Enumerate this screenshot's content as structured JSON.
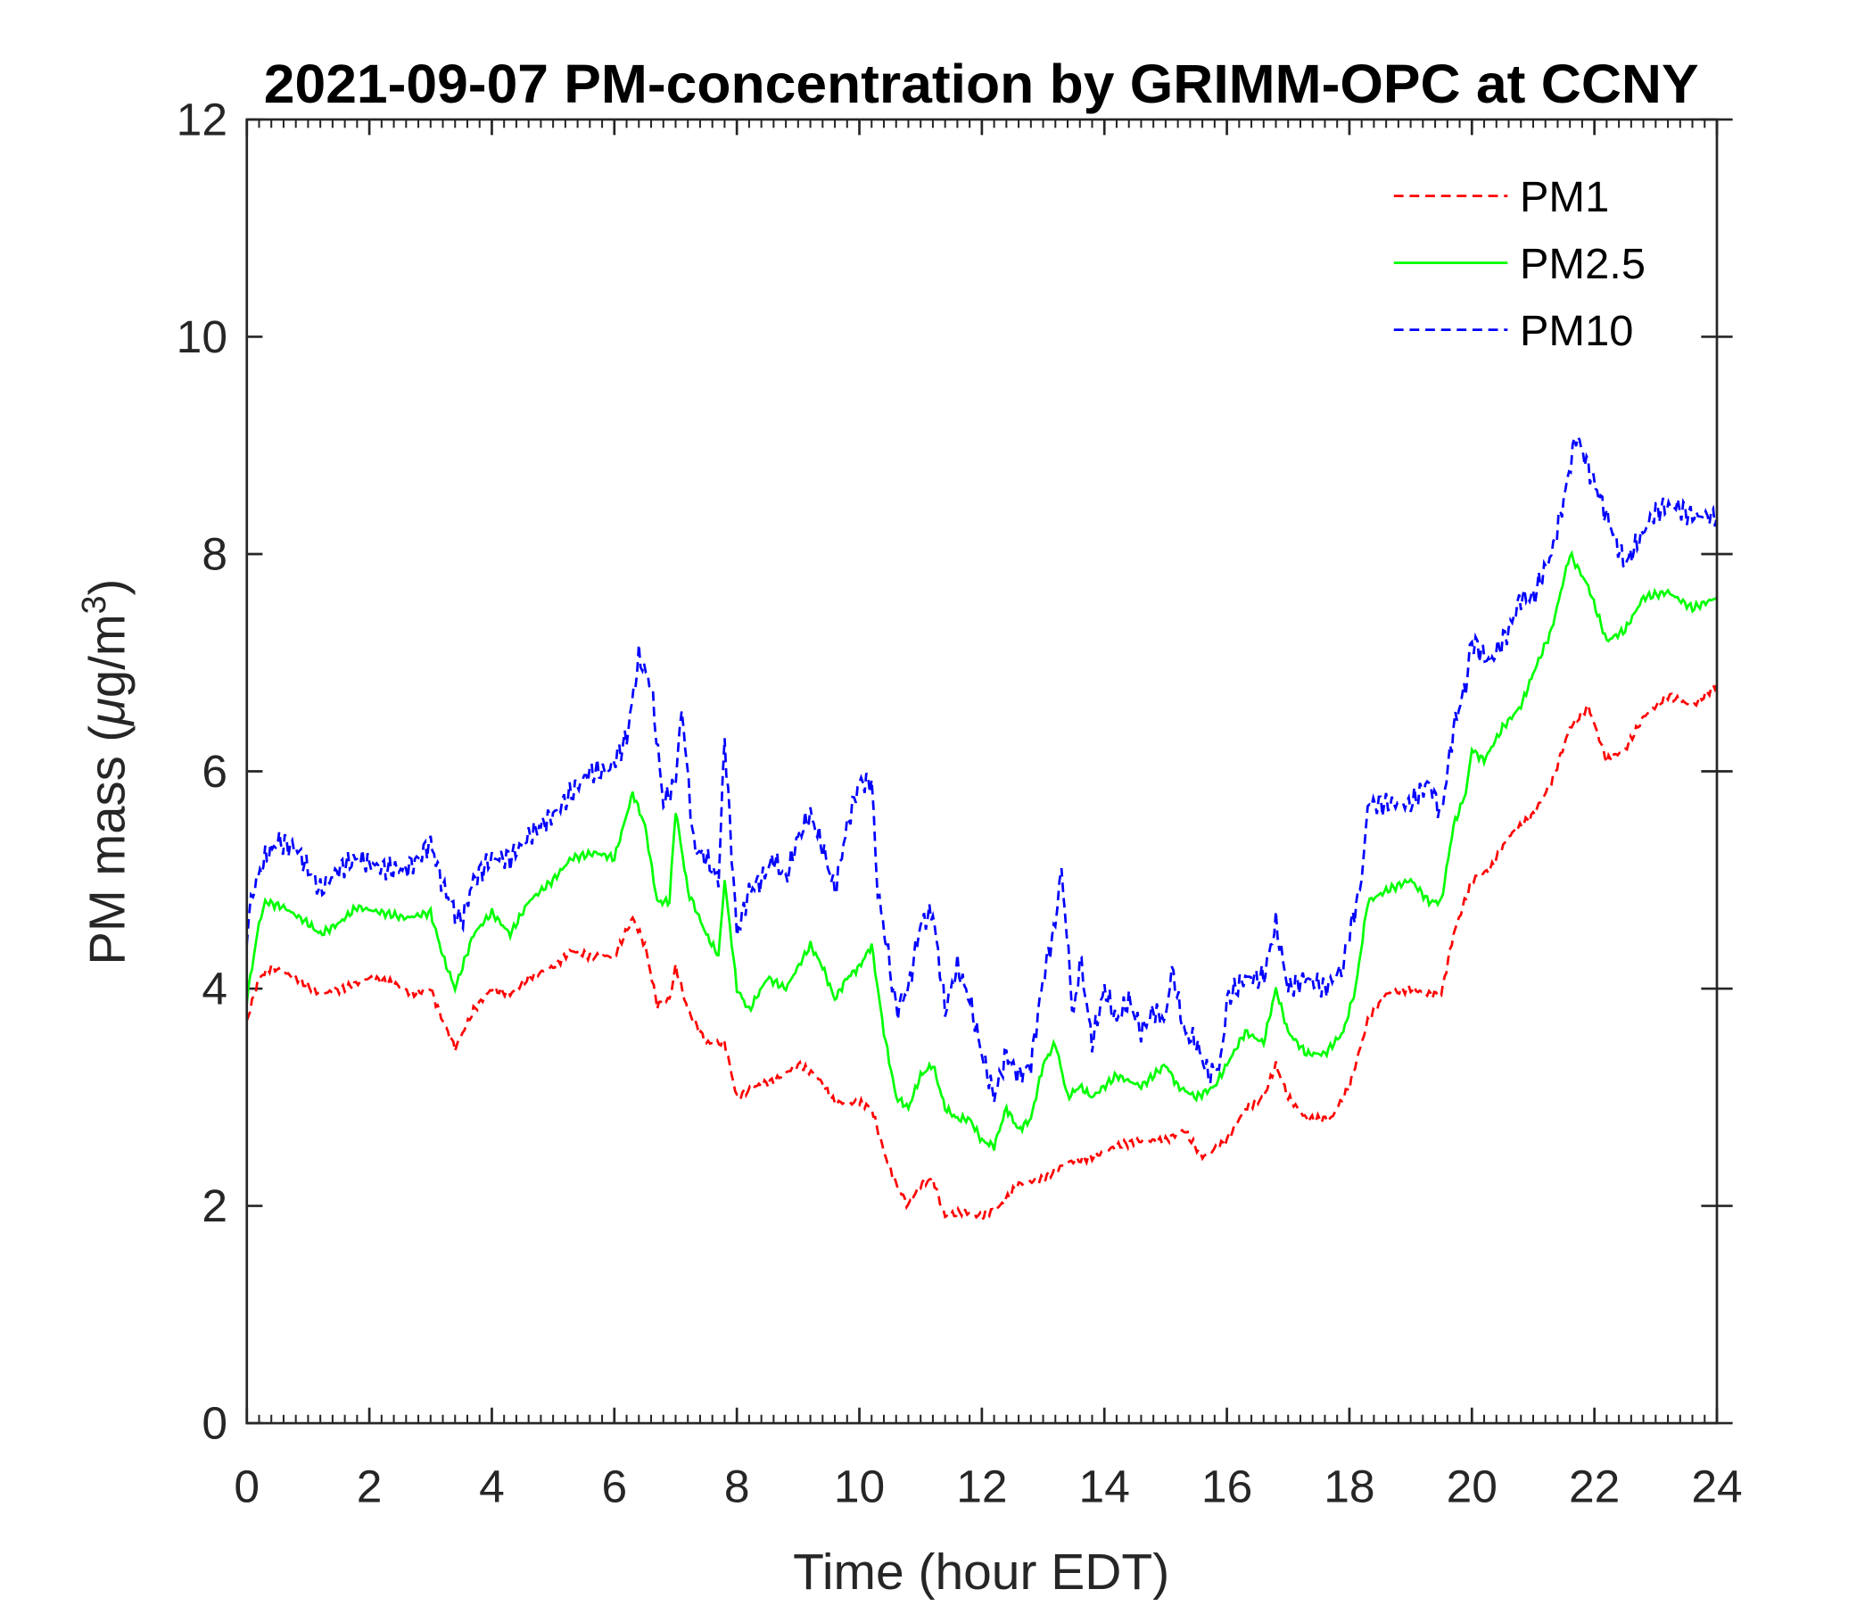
{
  "chart_data": {
    "type": "line",
    "title": "2021-09-07 PM-concentration by GRIMM-OPC at CCNY",
    "xlabel": "Time (hour EDT)",
    "ylabel_main": "PM mass (",
    "ylabel_mu": "μ",
    "ylabel_unit": "g/m",
    "ylabel_sup": "3",
    "ylabel_close": ")",
    "xlim": [
      0,
      24
    ],
    "ylim": [
      0,
      12
    ],
    "xticks": [
      0,
      2,
      4,
      6,
      8,
      10,
      12,
      14,
      16,
      18,
      20,
      22,
      24
    ],
    "yticks": [
      0,
      2,
      4,
      6,
      8,
      10,
      12
    ],
    "x_minor_step": 0.2,
    "grid": false,
    "legend_position": "top-right",
    "series": [
      {
        "name": "PM1",
        "color": "#ff0000",
        "style": "dashed",
        "x": [
          0,
          0.2,
          0.4,
          0.8,
          1.2,
          1.6,
          2.0,
          2.4,
          2.7,
          3.0,
          3.2,
          3.4,
          3.7,
          4.0,
          4.3,
          4.6,
          5.0,
          5.3,
          5.6,
          6.0,
          6.3,
          6.5,
          6.7,
          6.9,
          7.0,
          7.2,
          7.5,
          7.8,
          8.0,
          8.3,
          8.6,
          9.0,
          9.3,
          9.6,
          10.0,
          10.2,
          10.4,
          10.6,
          10.8,
          11.0,
          11.2,
          11.4,
          11.7,
          12.0,
          12.3,
          12.6,
          13.0,
          13.4,
          13.8,
          14.2,
          14.6,
          15.0,
          15.3,
          15.6,
          16.0,
          16.3,
          16.6,
          16.8,
          17.0,
          17.3,
          17.7,
          18.0,
          18.3,
          18.6,
          19.0,
          19.3,
          19.5,
          19.7,
          20.0,
          20.3,
          20.6,
          21.0,
          21.3,
          21.6,
          21.9,
          22.2,
          22.5,
          22.8,
          23.2,
          23.6,
          24.0
        ],
        "y": [
          3.7,
          4.1,
          4.2,
          4.1,
          3.95,
          4.0,
          4.1,
          4.05,
          3.95,
          4.0,
          3.7,
          3.45,
          3.8,
          4.0,
          3.95,
          4.1,
          4.2,
          4.35,
          4.3,
          4.3,
          4.65,
          4.4,
          3.85,
          3.9,
          4.2,
          3.8,
          3.5,
          3.5,
          3.0,
          3.1,
          3.15,
          3.3,
          3.2,
          2.95,
          2.95,
          2.9,
          2.5,
          2.2,
          2.0,
          2.2,
          2.25,
          1.9,
          1.95,
          1.9,
          2.0,
          2.2,
          2.25,
          2.4,
          2.45,
          2.55,
          2.6,
          2.6,
          2.7,
          2.45,
          2.6,
          2.9,
          3.0,
          3.3,
          3.0,
          2.8,
          2.8,
          3.1,
          3.7,
          3.95,
          4.0,
          3.95,
          3.95,
          4.5,
          5.0,
          5.1,
          5.4,
          5.6,
          5.9,
          6.4,
          6.6,
          6.1,
          6.2,
          6.5,
          6.7,
          6.6,
          6.8
        ]
      },
      {
        "name": "PM2.5",
        "color": "#00ff00",
        "style": "solid",
        "x": [
          0,
          0.2,
          0.3,
          0.6,
          1.0,
          1.2,
          1.5,
          1.8,
          2.2,
          2.6,
          3.0,
          3.2,
          3.4,
          3.7,
          4.0,
          4.3,
          4.6,
          5.0,
          5.3,
          5.7,
          6.0,
          6.3,
          6.5,
          6.7,
          6.9,
          7.0,
          7.2,
          7.5,
          7.7,
          7.8,
          8.0,
          8.2,
          8.5,
          8.8,
          9.2,
          9.4,
          9.6,
          9.8,
          10.0,
          10.2,
          10.4,
          10.6,
          10.8,
          11.0,
          11.2,
          11.4,
          11.6,
          11.8,
          12.0,
          12.2,
          12.4,
          12.6,
          12.8,
          13.0,
          13.2,
          13.4,
          13.6,
          13.8,
          14.2,
          14.6,
          15.0,
          15.2,
          15.5,
          15.8,
          16.0,
          16.3,
          16.6,
          16.8,
          17.0,
          17.3,
          17.6,
          17.9,
          18.1,
          18.3,
          18.6,
          19.0,
          19.3,
          19.5,
          19.7,
          19.9,
          20.0,
          20.2,
          20.5,
          20.8,
          21.0,
          21.3,
          21.6,
          21.9,
          22.2,
          22.5,
          22.8,
          23.2,
          23.6,
          24.0
        ],
        "y": [
          3.9,
          4.6,
          4.8,
          4.75,
          4.6,
          4.5,
          4.6,
          4.75,
          4.7,
          4.65,
          4.7,
          4.3,
          4.0,
          4.5,
          4.7,
          4.5,
          4.8,
          5.0,
          5.2,
          5.25,
          5.2,
          5.8,
          5.5,
          4.8,
          4.8,
          5.65,
          4.9,
          4.5,
          4.3,
          5.0,
          4.0,
          3.8,
          4.1,
          4.0,
          4.4,
          4.2,
          3.9,
          4.1,
          4.2,
          4.4,
          3.6,
          3.0,
          2.9,
          3.2,
          3.3,
          2.9,
          2.8,
          2.8,
          2.6,
          2.55,
          2.9,
          2.7,
          2.8,
          3.3,
          3.5,
          3.0,
          3.1,
          3.0,
          3.2,
          3.1,
          3.3,
          3.1,
          3.0,
          3.1,
          3.3,
          3.6,
          3.5,
          4.0,
          3.6,
          3.4,
          3.4,
          3.6,
          4.0,
          4.8,
          4.9,
          5.0,
          4.8,
          4.8,
          5.5,
          5.8,
          6.2,
          6.1,
          6.4,
          6.6,
          6.9,
          7.3,
          8.0,
          7.7,
          7.2,
          7.3,
          7.6,
          7.65,
          7.5,
          7.6
        ]
      },
      {
        "name": "PM10",
        "color": "#0000ff",
        "style": "dashed",
        "x": [
          0,
          0.1,
          0.3,
          0.5,
          0.8,
          1.0,
          1.2,
          1.5,
          1.8,
          2.0,
          2.3,
          2.6,
          2.8,
          3.0,
          3.2,
          3.4,
          3.5,
          3.7,
          4.0,
          4.3,
          4.6,
          4.8,
          5.0,
          5.3,
          5.6,
          5.9,
          6.2,
          6.4,
          6.6,
          6.8,
          7.0,
          7.1,
          7.3,
          7.5,
          7.7,
          7.8,
          8.0,
          8.2,
          8.4,
          8.6,
          8.8,
          9.0,
          9.2,
          9.4,
          9.6,
          9.8,
          10.0,
          10.2,
          10.3,
          10.5,
          10.6,
          10.8,
          11.0,
          11.2,
          11.4,
          11.6,
          11.8,
          12.0,
          12.2,
          12.4,
          12.6,
          12.8,
          13.0,
          13.2,
          13.3,
          13.5,
          13.6,
          13.8,
          14.0,
          14.2,
          14.4,
          14.6,
          14.8,
          15.0,
          15.1,
          15.3,
          15.5,
          15.7,
          15.9,
          16.0,
          16.3,
          16.6,
          16.8,
          17.0,
          17.3,
          17.6,
          17.9,
          18.0,
          18.2,
          18.3,
          18.6,
          19.0,
          19.3,
          19.5,
          19.7,
          19.9,
          20.0,
          20.3,
          20.6,
          20.8,
          21.0,
          21.3,
          21.5,
          21.7,
          21.9,
          22.1,
          22.3,
          22.5,
          22.7,
          23.0,
          23.3,
          23.6,
          24.0
        ],
        "y": [
          4.5,
          4.9,
          5.2,
          5.35,
          5.3,
          5.1,
          4.9,
          5.1,
          5.2,
          5.15,
          5.1,
          5.1,
          5.2,
          5.35,
          4.95,
          4.7,
          4.6,
          5.0,
          5.2,
          5.2,
          5.4,
          5.5,
          5.6,
          5.8,
          6.0,
          6.0,
          6.3,
          7.05,
          6.8,
          5.7,
          5.9,
          6.6,
          5.3,
          5.2,
          5.0,
          6.3,
          4.5,
          4.9,
          5.0,
          5.2,
          5.0,
          5.4,
          5.6,
          5.3,
          4.9,
          5.5,
          5.9,
          5.9,
          4.9,
          4.2,
          3.8,
          4.0,
          4.6,
          4.7,
          3.8,
          4.2,
          3.9,
          3.4,
          3.0,
          3.4,
          3.2,
          3.3,
          4.1,
          4.6,
          5.1,
          3.7,
          4.3,
          3.5,
          4.0,
          3.7,
          3.9,
          3.6,
          3.8,
          3.7,
          4.2,
          3.6,
          3.5,
          3.2,
          3.3,
          3.9,
          4.1,
          4.1,
          4.6,
          4.0,
          4.1,
          4.0,
          4.2,
          4.5,
          5.0,
          5.7,
          5.7,
          5.7,
          5.9,
          5.6,
          6.4,
          6.8,
          7.2,
          7.0,
          7.3,
          7.6,
          7.6,
          8.0,
          8.5,
          9.1,
          8.8,
          8.5,
          8.2,
          7.9,
          8.1,
          8.4,
          8.45,
          8.35,
          8.35
        ]
      }
    ]
  }
}
